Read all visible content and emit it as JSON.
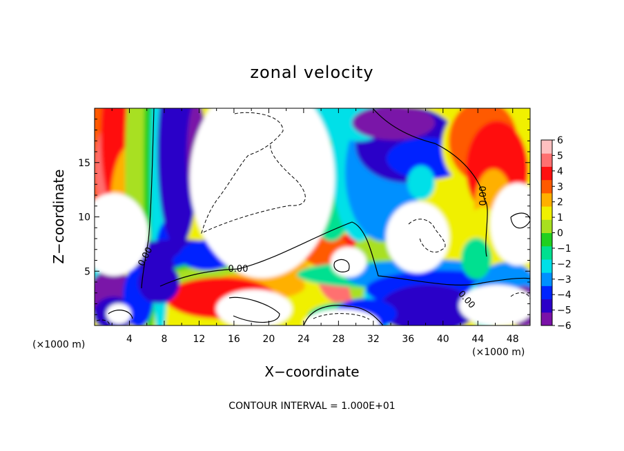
{
  "chart_data": {
    "type": "heatmap",
    "title": "zonal velocity",
    "xlabel": "X−coordinate",
    "ylabel": "Z−coordinate",
    "x_units_label": "(×1000 m)",
    "y_units_label": "(×1000 m)",
    "xlim": [
      0,
      50
    ],
    "ylim": [
      0,
      20
    ],
    "x_ticks": [
      4,
      8,
      12,
      16,
      20,
      24,
      28,
      32,
      36,
      40,
      44,
      48
    ],
    "y_ticks": [
      5,
      10,
      15
    ],
    "colorbar": {
      "min": -6,
      "max": 6,
      "ticks": [
        6,
        5,
        4,
        3,
        2,
        1,
        0,
        -1,
        -2,
        -3,
        -4,
        -5,
        -6
      ],
      "tick_labels": [
        "6",
        "5",
        "4",
        "3",
        "2",
        "1",
        "0",
        "−1",
        "−2",
        "−3",
        "−4",
        "−5",
        "−6"
      ]
    },
    "contour_labels": [
      "0.00",
      "0.00",
      "0.00",
      "0.00"
    ],
    "contour_interval_text": "CONTOUR INTERVAL = 1.000E+01",
    "out_of_range_color": "#ffffff",
    "colormap": [
      "#7a12a8",
      "#2b00c8",
      "#0024ff",
      "#0090ff",
      "#00e0e8",
      "#00e090",
      "#20d020",
      "#a8e020",
      "#f0f000",
      "#ffb000",
      "#ff5a00",
      "#ff1010",
      "#ff7070",
      "#ffc0c0"
    ]
  }
}
